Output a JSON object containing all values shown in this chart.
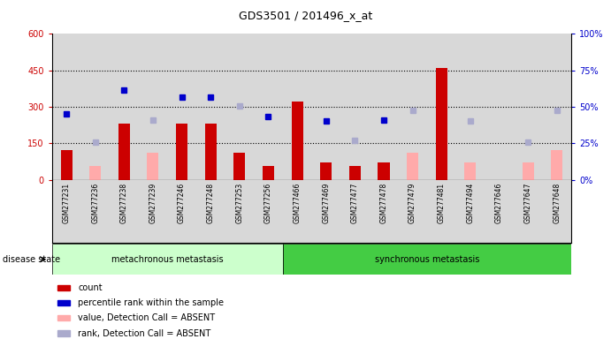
{
  "title": "GDS3501 / 201496_x_at",
  "samples": [
    "GSM277231",
    "GSM277236",
    "GSM277238",
    "GSM277239",
    "GSM277246",
    "GSM277248",
    "GSM277253",
    "GSM277256",
    "GSM277466",
    "GSM277469",
    "GSM277477",
    "GSM277478",
    "GSM277479",
    "GSM277481",
    "GSM277494",
    "GSM277646",
    "GSM277647",
    "GSM277648"
  ],
  "count_values": [
    120,
    0,
    230,
    0,
    230,
    230,
    110,
    55,
    320,
    70,
    55,
    70,
    0,
    460,
    0,
    0,
    0,
    0
  ],
  "count_absent": [
    0,
    55,
    0,
    110,
    0,
    0,
    0,
    0,
    0,
    0,
    0,
    0,
    110,
    0,
    70,
    0,
    70,
    120
  ],
  "rank_values": [
    270,
    0,
    370,
    0,
    340,
    340,
    0,
    260,
    0,
    240,
    0,
    245,
    0,
    0,
    0,
    0,
    0,
    0
  ],
  "rank_absent": [
    0,
    155,
    0,
    245,
    0,
    0,
    305,
    0,
    0,
    0,
    160,
    0,
    285,
    0,
    240,
    0,
    155,
    285
  ],
  "group1_count": 8,
  "group2_count": 10,
  "group1_label": "metachronous metastasis",
  "group2_label": "synchronous metastasis",
  "ylim_left": [
    0,
    600
  ],
  "ylim_right": [
    0,
    100
  ],
  "yticks_left": [
    0,
    150,
    300,
    450,
    600
  ],
  "yticks_right": [
    0,
    25,
    50,
    75,
    100
  ],
  "ytick_labels_left": [
    "0",
    "150",
    "300",
    "450",
    "600"
  ],
  "ytick_labels_right": [
    "0%",
    "25%",
    "50%",
    "75%",
    "100%"
  ],
  "bar_color_present": "#cc0000",
  "bar_color_absent": "#ffaaaa",
  "marker_color_present": "#0000cc",
  "marker_color_absent": "#aaaacc",
  "bg_plot": "#d8d8d8",
  "bg_group1": "#ccffcc",
  "bg_group2": "#44cc44",
  "disease_state_label": "disease state",
  "legend_items": [
    {
      "color": "#cc0000",
      "label": "count"
    },
    {
      "color": "#0000cc",
      "label": "percentile rank within the sample"
    },
    {
      "color": "#ffaaaa",
      "label": "value, Detection Call = ABSENT"
    },
    {
      "color": "#aaaacc",
      "label": "rank, Detection Call = ABSENT"
    }
  ]
}
